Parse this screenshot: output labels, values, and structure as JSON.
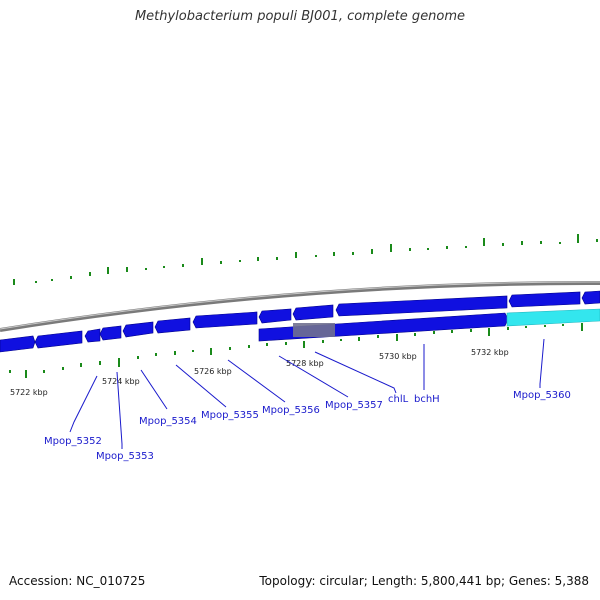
{
  "title": "Methylobacterium populi BJ001, complete genome",
  "footer": {
    "accession": "Accession: NC_010725",
    "summary": "Topology: circular; Length: 5,800,441 bp; Genes: 5,388"
  },
  "colors": {
    "gene_fill": "#1010e0",
    "gene_highlight": "#33e6ee",
    "selection": "#707090",
    "backbone": "#888888",
    "gc_marks": "#1a8a1a",
    "label": "#1a1acc"
  },
  "ticks": [
    {
      "label": "5722 kbp"
    },
    {
      "label": "5724 kbp"
    },
    {
      "label": "5726 kbp"
    },
    {
      "label": "5728 kbp"
    },
    {
      "label": "5730 kbp"
    },
    {
      "label": "5732 kbp"
    }
  ],
  "genes": [
    {
      "label": "Mpop_5352"
    },
    {
      "label": "Mpop_5353"
    },
    {
      "label": "Mpop_5354"
    },
    {
      "label": "Mpop_5355"
    },
    {
      "label": "Mpop_5356"
    },
    {
      "label": "Mpop_5357"
    },
    {
      "label": "chlL"
    },
    {
      "label": "bchH"
    },
    {
      "label": "Mpop_5360"
    }
  ]
}
